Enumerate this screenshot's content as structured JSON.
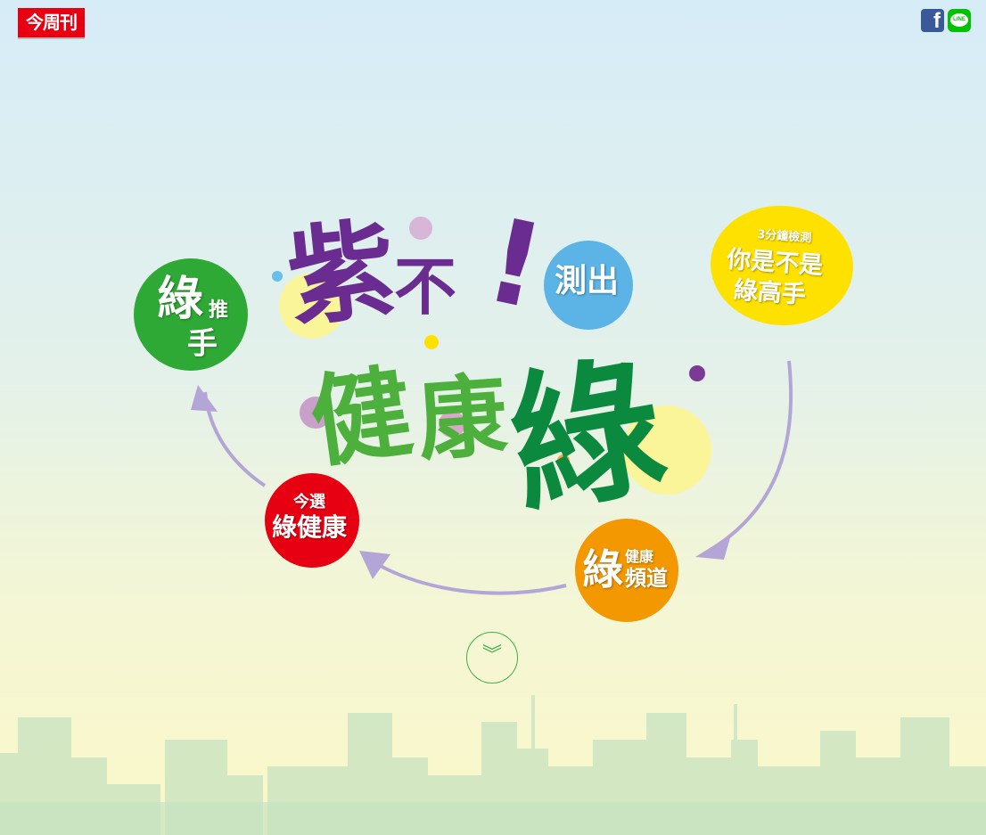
{
  "brand": {
    "logo_text": "今周刊"
  },
  "share": {
    "facebook_glyph": "f",
    "line_label": "LINE"
  },
  "title": {
    "char1": "紫",
    "char2": "不",
    "char3": "!",
    "char4": "健",
    "char5": "康",
    "char6": "綠"
  },
  "nav": {
    "measure": {
      "label": "測出"
    },
    "quiz": {
      "top": "3分鐘檢測",
      "line1": "你是不是",
      "line2": "綠高手"
    },
    "channel": {
      "big": "綠",
      "top": "健康",
      "bottom": "頻道"
    },
    "select": {
      "top": "今選",
      "bottom": "綠健康"
    },
    "helper": {
      "big": "綠",
      "side": "推",
      "bottom": "手"
    }
  },
  "scroll": {
    "icon": "double-chevron-down-icon",
    "glyph": "︾"
  },
  "colors": {
    "green": "#2fa935",
    "red": "#e60012",
    "orange": "#f39800",
    "yellow": "#ffe100",
    "blue": "#5bb4e5",
    "purple": "#6a2c91",
    "arrow": "#b3a6d6"
  }
}
